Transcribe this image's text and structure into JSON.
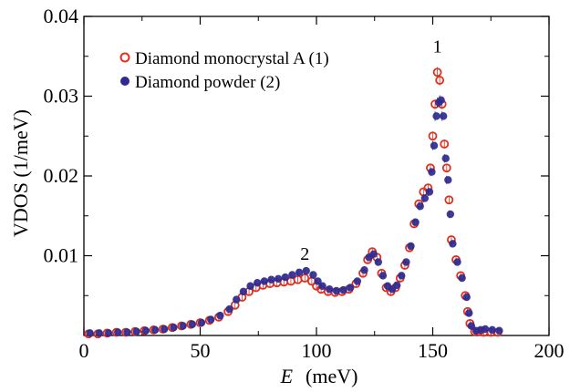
{
  "chart_data": {
    "type": "scatter",
    "title": "",
    "xlabel_italic": "E",
    "xlabel_unit": "(meV)",
    "ylabel": "VDOS  (1/meV)",
    "xlim": [
      0,
      200
    ],
    "ylim": [
      0,
      0.04
    ],
    "x_ticks": [
      "0",
      "50",
      "100",
      "150",
      "200"
    ],
    "y_ticks": [
      "0.01",
      "0.02",
      "0.03",
      "0.04"
    ],
    "grid": false,
    "legend_position": "top-left",
    "series": [
      {
        "name": "Diamond monocrystal A (1)",
        "marker": "open-circle",
        "color": "#e0301e",
        "points": [
          [
            2,
            0.0002
          ],
          [
            6,
            0.0002
          ],
          [
            10,
            0.0003
          ],
          [
            14,
            0.0004
          ],
          [
            18,
            0.0004
          ],
          [
            22,
            0.0005
          ],
          [
            26,
            0.0006
          ],
          [
            30,
            0.0007
          ],
          [
            34,
            0.0008
          ],
          [
            38,
            0.001
          ],
          [
            42,
            0.0012
          ],
          [
            46,
            0.0014
          ],
          [
            50,
            0.0016
          ],
          [
            54,
            0.0019
          ],
          [
            58,
            0.0023
          ],
          [
            62,
            0.003
          ],
          [
            65,
            0.0038
          ],
          [
            68,
            0.0048
          ],
          [
            71,
            0.0055
          ],
          [
            74,
            0.006
          ],
          [
            77,
            0.0063
          ],
          [
            80,
            0.0065
          ],
          [
            83,
            0.0066
          ],
          [
            86,
            0.0067
          ],
          [
            89,
            0.0068
          ],
          [
            92,
            0.007
          ],
          [
            95,
            0.0072
          ],
          [
            98,
            0.0068
          ],
          [
            100,
            0.0062
          ],
          [
            102,
            0.0058
          ],
          [
            105,
            0.0055
          ],
          [
            108,
            0.0054
          ],
          [
            111,
            0.0055
          ],
          [
            114,
            0.0058
          ],
          [
            117,
            0.0065
          ],
          [
            120,
            0.0078
          ],
          [
            122,
            0.0095
          ],
          [
            124,
            0.0105
          ],
          [
            126,
            0.0098
          ],
          [
            128,
            0.0078
          ],
          [
            130,
            0.006
          ],
          [
            132,
            0.0055
          ],
          [
            134,
            0.006
          ],
          [
            136,
            0.0072
          ],
          [
            138,
            0.0088
          ],
          [
            140,
            0.011
          ],
          [
            142,
            0.014
          ],
          [
            144,
            0.0165
          ],
          [
            146,
            0.018
          ],
          [
            148,
            0.0185
          ],
          [
            149,
            0.021
          ],
          [
            150,
            0.025
          ],
          [
            151,
            0.029
          ],
          [
            152,
            0.033
          ],
          [
            153,
            0.032
          ],
          [
            154,
            0.029
          ],
          [
            155,
            0.024
          ],
          [
            156,
            0.021
          ],
          [
            157,
            0.017
          ],
          [
            158,
            0.012
          ],
          [
            160,
            0.0095
          ],
          [
            162,
            0.0075
          ],
          [
            164,
            0.005
          ],
          [
            165,
            0.003
          ],
          [
            166,
            0.0015
          ],
          [
            168,
            0.0005
          ],
          [
            170,
            0.0005
          ],
          [
            172,
            0.0004
          ],
          [
            175,
            0.0004
          ],
          [
            178,
            0.0004
          ]
        ]
      },
      {
        "name": "Diamond powder (2)",
        "marker": "filled-circle",
        "color": "#2e2a8f",
        "points": [
          [
            2,
            0.0003
          ],
          [
            6,
            0.0003
          ],
          [
            10,
            0.0003
          ],
          [
            14,
            0.0004
          ],
          [
            18,
            0.0004
          ],
          [
            22,
            0.0005
          ],
          [
            26,
            0.0006
          ],
          [
            30,
            0.0007
          ],
          [
            34,
            0.0008
          ],
          [
            38,
            0.001
          ],
          [
            42,
            0.0012
          ],
          [
            46,
            0.0014
          ],
          [
            50,
            0.0016
          ],
          [
            54,
            0.002
          ],
          [
            58,
            0.0025
          ],
          [
            62,
            0.0033
          ],
          [
            65,
            0.0045
          ],
          [
            68,
            0.0055
          ],
          [
            71,
            0.0062
          ],
          [
            74,
            0.0066
          ],
          [
            77,
            0.0068
          ],
          [
            80,
            0.007
          ],
          [
            83,
            0.0071
          ],
          [
            86,
            0.0073
          ],
          [
            89,
            0.0076
          ],
          [
            92,
            0.0079
          ],
          [
            95,
            0.0081
          ],
          [
            98,
            0.0076
          ],
          [
            100,
            0.0068
          ],
          [
            102,
            0.0062
          ],
          [
            105,
            0.0058
          ],
          [
            108,
            0.0056
          ],
          [
            111,
            0.0057
          ],
          [
            114,
            0.006
          ],
          [
            117,
            0.0068
          ],
          [
            120,
            0.0082
          ],
          [
            122,
            0.0098
          ],
          [
            124,
            0.0102
          ],
          [
            126,
            0.0092
          ],
          [
            128,
            0.0075
          ],
          [
            130,
            0.0062
          ],
          [
            132,
            0.0058
          ],
          [
            134,
            0.0063
          ],
          [
            136,
            0.0075
          ],
          [
            138,
            0.0092
          ],
          [
            140,
            0.0112
          ],
          [
            142,
            0.0142
          ],
          [
            144,
            0.0162
          ],
          [
            146,
            0.0172
          ],
          [
            148,
            0.018
          ],
          [
            149,
            0.0205
          ],
          [
            150,
            0.0238
          ],
          [
            151,
            0.0275
          ],
          [
            152,
            0.0292
          ],
          [
            153,
            0.0295
          ],
          [
            154,
            0.0275
          ],
          [
            155,
            0.0222
          ],
          [
            156,
            0.0195
          ],
          [
            157,
            0.0152
          ],
          [
            158,
            0.0115
          ],
          [
            160,
            0.0092
          ],
          [
            162,
            0.0072
          ],
          [
            164,
            0.0048
          ],
          [
            165,
            0.0028
          ],
          [
            166,
            0.0012
          ],
          [
            168,
            0.0006
          ],
          [
            170,
            0.0007
          ],
          [
            172,
            0.0008
          ],
          [
            175,
            0.0007
          ],
          [
            178,
            0.0006
          ]
        ]
      }
    ],
    "annotations": [
      {
        "text": "1",
        "x": 152,
        "y": 0.0355
      },
      {
        "text": "2",
        "x": 95,
        "y": 0.0095
      }
    ]
  }
}
